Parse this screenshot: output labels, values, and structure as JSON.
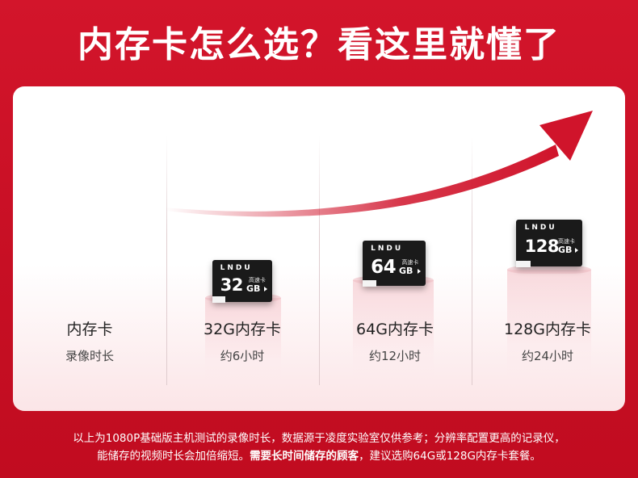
{
  "title": "内存卡怎么选？看这里就懂了",
  "columns": [
    {
      "heading": "内存卡",
      "sub": "录像时长"
    },
    {
      "heading": "32G内存卡",
      "sub": "约6小时",
      "card": {
        "brand": "LNDU",
        "speed": "高速卡",
        "capacity": "32",
        "unit": "GB"
      }
    },
    {
      "heading": "64G内存卡",
      "sub": "约12小时",
      "card": {
        "brand": "LNDU",
        "speed": "高速卡",
        "capacity": "64",
        "unit": "GB"
      }
    },
    {
      "heading": "128G内存卡",
      "sub": "约24小时",
      "card": {
        "brand": "LNDU",
        "speed": "高速卡",
        "capacity": "128",
        "unit": "GB"
      }
    }
  ],
  "footnote": {
    "line1": "以上为1080P基础版主机测试的录像时长，数据源于凌度实验室仅供参考；分辨率配置更高的记录仪，",
    "line2_a": "能储存的视频时长会加倍缩短。",
    "line2_b": "需要长时间储存的顾客",
    "line2_c": "，建议选购64G或128G内存卡套餐。"
  },
  "colors": {
    "background": "#c70f24",
    "arrow": "#d0142b",
    "card": "#1a1a1a"
  }
}
